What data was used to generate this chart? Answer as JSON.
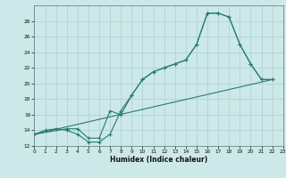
{
  "xlabel": "Humidex (Indice chaleur)",
  "bg_color": "#cce8e8",
  "grid_color": "#aad0d0",
  "line_color": "#2a7a70",
  "ylim": [
    12,
    30
  ],
  "xlim": [
    0,
    23
  ],
  "yticks": [
    12,
    14,
    16,
    18,
    20,
    22,
    24,
    26,
    28
  ],
  "xticks": [
    0,
    1,
    2,
    3,
    4,
    5,
    6,
    7,
    8,
    9,
    10,
    11,
    12,
    13,
    14,
    15,
    16,
    17,
    18,
    19,
    20,
    21,
    22,
    23
  ],
  "line1_x": [
    0,
    1,
    2,
    3,
    4,
    5,
    6,
    7,
    8,
    9,
    10,
    11,
    12,
    13,
    14,
    15,
    16,
    17,
    18,
    19,
    20,
    21,
    22
  ],
  "line1_y": [
    13.5,
    14.0,
    14.2,
    14.0,
    13.5,
    12.5,
    12.5,
    13.5,
    16.5,
    18.5,
    20.5,
    21.5,
    22.0,
    22.5,
    23.0,
    25.0,
    29.0,
    29.0,
    28.5,
    25.0,
    22.5,
    20.5,
    20.5
  ],
  "line2_x": [
    0,
    3,
    4,
    5,
    6,
    7,
    8,
    9,
    10,
    11,
    12,
    13,
    14,
    15,
    16,
    17,
    18,
    19,
    20,
    21,
    22
  ],
  "line2_y": [
    13.5,
    14.2,
    14.2,
    13.0,
    13.0,
    16.5,
    16.0,
    18.5,
    20.5,
    21.5,
    22.0,
    22.5,
    23.0,
    25.0,
    29.0,
    29.0,
    28.5,
    25.0,
    22.5,
    20.5,
    20.5
  ],
  "line3_x": [
    0,
    22
  ],
  "line3_y": [
    13.5,
    20.5
  ]
}
